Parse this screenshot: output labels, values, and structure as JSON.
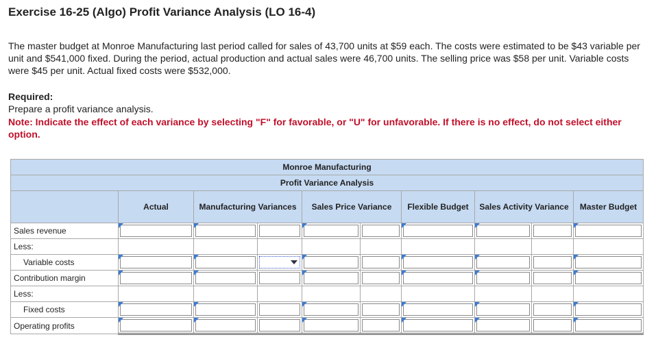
{
  "header": {
    "title": "Exercise 16-25 (Algo) Profit Variance Analysis (LO 16-4)"
  },
  "problem": {
    "text": "The master budget at Monroe Manufacturing last period called for sales of 43,700 units at $59 each. The costs were estimated to be $43 variable per unit and $541,000 fixed. During the period, actual production and actual sales were 46,700 units. The selling price was $58 per unit. Variable costs were $45 per unit. Actual fixed costs were $532,000."
  },
  "required": {
    "label": "Required:",
    "prompt": "Prepare a profit variance analysis.",
    "note": "Note: Indicate the effect of each variance by selecting \"F\" for favorable, or \"U\" for unfavorable. If there is no effect, do not select either option."
  },
  "table": {
    "title": "Monroe Manufacturing",
    "subtitle": "Profit Variance Analysis",
    "columns": [
      "Actual",
      "Manufacturing Variances",
      "Sales Price Variance",
      "Flexible Budget",
      "Sales Activity Variance",
      "Master Budget"
    ],
    "rows": [
      "Sales revenue",
      "Less:",
      "Variable costs",
      "Contribution margin",
      "Less:",
      "Fixed costs",
      "Operating profits"
    ]
  }
}
